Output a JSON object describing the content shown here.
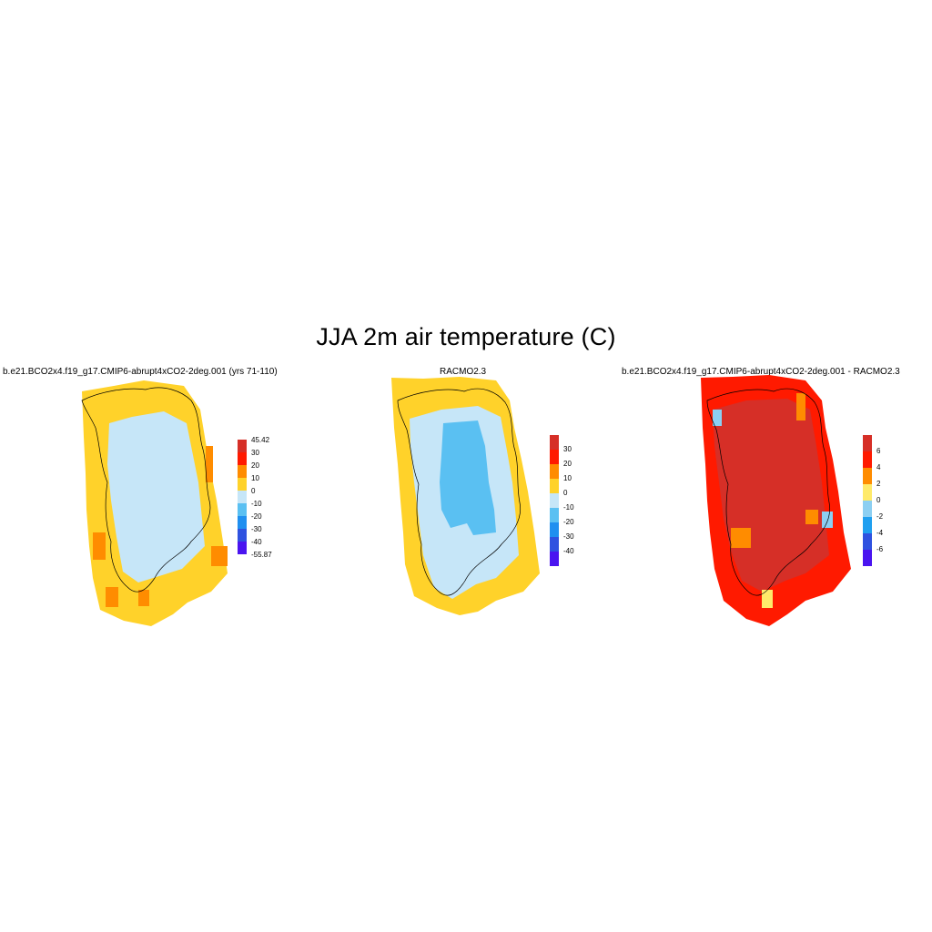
{
  "title": "JJA 2m air temperature (C)",
  "panels": [
    {
      "id": "model",
      "title": "b.e21.BCO2x4.f19_g17.CMIP6-abrupt4xCO2-2deg.001 (yrs 71-110)",
      "colorbar": {
        "colors": [
          "#d62f27",
          "#ff1a00",
          "#ff8c00",
          "#ffd22a",
          "#c6e6f8",
          "#5ac0f2",
          "#1f8ff0",
          "#2f52e0",
          "#4a14f0"
        ],
        "labels": [
          "45.42",
          "30",
          "20",
          "10",
          "0",
          "-10",
          "-20",
          "-30",
          "-40",
          "-55.87"
        ]
      }
    },
    {
      "id": "racmo",
      "title": "RACMO2.3",
      "colorbar": {
        "colors": [
          "#d62f27",
          "#ff1a00",
          "#ff8c00",
          "#ffd22a",
          "#c6e6f8",
          "#5ac0f2",
          "#1f8ff0",
          "#2f52e0",
          "#4a14f0"
        ],
        "labels": [
          "30",
          "20",
          "10",
          "0",
          "-10",
          "-20",
          "-30",
          "-40"
        ]
      }
    },
    {
      "id": "difference",
      "title": "b.e21.BCO2x4.f19_g17.CMIP6-abrupt4xCO2-2deg.001 - RACMO2.3",
      "colorbar": {
        "colors": [
          "#d62f27",
          "#ff1a00",
          "#ff8c00",
          "#ffea6a",
          "#8ccff2",
          "#1f9ff0",
          "#2f52e0",
          "#4a14f0"
        ],
        "labels": [
          "6",
          "4",
          "2",
          "0",
          "-2",
          "-4",
          "-6"
        ]
      }
    }
  ]
}
